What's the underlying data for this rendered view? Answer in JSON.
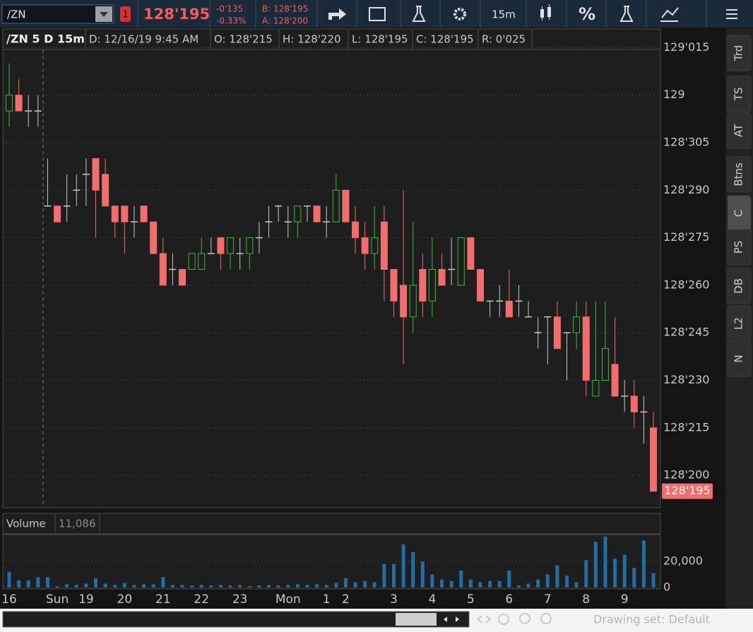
{
  "toolbar": {
    "symbol": "/ZN",
    "badge": "1",
    "last": "128'195",
    "change": "-0'135",
    "change_pct": "-0.33%",
    "bid": "B: 128'195",
    "ask": "A: 128'200",
    "interval": "15m",
    "percent": "%"
  },
  "sidebar_tabs": [
    "Trd",
    "TS",
    "AT",
    "Btns",
    "C",
    "PS",
    "DB",
    "L2",
    "N"
  ],
  "header": {
    "symbol_period": "/ZN 5 D 15m",
    "date": "D: 12/16/19 9:45 AM",
    "open": "O: 128'215",
    "high": "H: 128'220",
    "low": "L: 128'195",
    "close": "C: 128'195",
    "range": "R: 0'025"
  },
  "footer": {
    "drawing_set": "Drawing set: Default"
  },
  "chart_data": [
    {
      "type": "candlestick",
      "up_color": "#3cb93c",
      "down_color": "#f26d6d",
      "doji_color": "#c8c8c8",
      "grid": true,
      "categories": [
        "16",
        null,
        null,
        null,
        null,
        "Sun",
        null,
        null,
        "19",
        null,
        null,
        null,
        "20",
        null,
        null,
        null,
        "21",
        null,
        null,
        null,
        "22",
        null,
        null,
        null,
        "23",
        null,
        null,
        null,
        null,
        "Mon",
        null,
        null,
        null,
        "1",
        null,
        "2",
        null,
        null,
        null,
        null,
        "3",
        null,
        null,
        null,
        "4",
        null,
        null,
        null,
        "5",
        null,
        null,
        null,
        "6",
        null,
        null,
        null,
        "7",
        null,
        null,
        null,
        "8",
        null,
        null,
        null,
        "9",
        null,
        null,
        null
      ],
      "open": [
        128.984375,
        129,
        128.984375,
        128.984375,
        128.890625,
        128.890625,
        128.890625,
        128.90625,
        128.921875,
        128.9375,
        128.921875,
        128.890625,
        128.890625,
        128.875,
        128.890625,
        128.875,
        128.84375,
        128.828125,
        128.828125,
        128.828125,
        128.828125,
        128.84375,
        128.859375,
        128.84375,
        128.84375,
        128.84375,
        128.859375,
        128.875,
        128.890625,
        128.875,
        128.875,
        128.890625,
        128.890625,
        128.875,
        128.875,
        128.90625,
        128.875,
        128.859375,
        128.84375,
        128.875,
        128.828125,
        128.8125,
        128.78125,
        128.828125,
        128.796875,
        128.828125,
        128.828125,
        128.8125,
        128.859375,
        128.828125,
        128.796875,
        128.796875,
        128.796875,
        128.796875,
        128.78125,
        128.765625,
        128.78125,
        128.78125,
        128.765625,
        128.765625,
        128.78125,
        128.703125,
        128.71875,
        128.734375,
        128.703125,
        128.703125,
        128.6875,
        128.671875
      ],
      "high": [
        129.03125,
        129.015625,
        129,
        129,
        128.9375,
        128.890625,
        128.921875,
        128.921875,
        128.9375,
        128.9375,
        128.9375,
        128.890625,
        128.890625,
        128.890625,
        128.890625,
        128.875,
        128.859375,
        128.84375,
        128.828125,
        128.84375,
        128.859375,
        128.859375,
        128.859375,
        128.859375,
        128.859375,
        128.859375,
        128.875,
        128.890625,
        128.890625,
        128.890625,
        128.890625,
        128.890625,
        128.890625,
        128.890625,
        128.921875,
        128.90625,
        128.890625,
        128.875,
        128.890625,
        128.890625,
        128.828125,
        128.90625,
        128.875,
        128.84375,
        128.859375,
        128.84375,
        128.859375,
        128.859375,
        128.859375,
        128.828125,
        128.796875,
        128.8125,
        128.828125,
        128.8125,
        128.796875,
        128.78125,
        128.78125,
        128.796875,
        128.765625,
        128.796875,
        128.796875,
        128.796875,
        128.796875,
        128.78125,
        128.71875,
        128.71875,
        128.703125,
        128.6875
      ],
      "low": [
        128.96875,
        128.984375,
        128.96875,
        128.96875,
        128.890625,
        128.875,
        128.875,
        128.890625,
        128.890625,
        128.859375,
        128.890625,
        128.859375,
        128.84375,
        128.859375,
        128.875,
        128.84375,
        128.8125,
        128.8125,
        128.8125,
        128.828125,
        128.828125,
        128.84375,
        128.828125,
        128.828125,
        128.828125,
        128.828125,
        128.84375,
        128.859375,
        128.875,
        128.859375,
        128.859375,
        128.875,
        128.875,
        128.859375,
        128.875,
        128.875,
        128.84375,
        128.828125,
        128.828125,
        128.796875,
        128.78125,
        128.734375,
        128.765625,
        128.78125,
        128.78125,
        128.8125,
        128.8125,
        128.8125,
        128.828125,
        128.796875,
        128.78125,
        128.78125,
        128.78125,
        128.78125,
        128.78125,
        128.75,
        128.734375,
        128.75,
        128.71875,
        128.75,
        128.703125,
        128.703125,
        128.71875,
        128.703125,
        128.6875,
        128.671875,
        128.65625,
        128.609375
      ],
      "close": [
        129,
        128.984375,
        128.984375,
        128.984375,
        128.890625,
        128.875,
        128.890625,
        128.90625,
        128.921875,
        128.90625,
        128.890625,
        128.875,
        128.875,
        128.875,
        128.875,
        128.84375,
        128.8125,
        128.828125,
        128.8125,
        128.84375,
        128.84375,
        128.84375,
        128.84375,
        128.859375,
        128.84375,
        128.859375,
        128.859375,
        128.875,
        128.890625,
        128.875,
        128.890625,
        128.890625,
        128.875,
        128.875,
        128.90625,
        128.875,
        128.859375,
        128.84375,
        128.859375,
        128.828125,
        128.796875,
        128.78125,
        128.8125,
        128.796875,
        128.828125,
        128.8125,
        128.828125,
        128.859375,
        128.828125,
        128.796875,
        128.796875,
        128.796875,
        128.78125,
        128.796875,
        128.78125,
        128.765625,
        128.78125,
        128.75,
        128.765625,
        128.78125,
        128.71875,
        128.71875,
        128.75,
        128.703125,
        128.703125,
        128.6875,
        128.6875,
        128.609375
      ],
      "last_label": "128'195",
      "ylim": [
        128.59375,
        129.0625
      ],
      "yticks": [
        {
          "value": 128.625,
          "label": "128'200"
        },
        {
          "value": 128.671875,
          "label": "128'215"
        },
        {
          "value": 128.71875,
          "label": "128'230"
        },
        {
          "value": 128.765625,
          "label": "128'245"
        },
        {
          "value": 128.8125,
          "label": "128'260"
        },
        {
          "value": 128.859375,
          "label": "128'275"
        },
        {
          "value": 128.90625,
          "label": "128'290"
        },
        {
          "value": 128.953125,
          "label": "128'305"
        },
        129,
        {
          "value": 129.046875,
          "label": "129'015"
        }
      ]
    },
    {
      "type": "bar",
      "title": "Volume",
      "subtitle": "11,086",
      "color": "#1f6fa6",
      "values": [
        12000,
        5500,
        5500,
        8000,
        8000,
        1000,
        2500,
        2000,
        3000,
        7000,
        3000,
        2000,
        3500,
        2000,
        2500,
        2500,
        8000,
        2000,
        2000,
        1500,
        2000,
        1500,
        2000,
        1500,
        2000,
        1000,
        1500,
        2000,
        1500,
        2000,
        2500,
        2000,
        2500,
        2000,
        3500,
        7000,
        4000,
        5000,
        4000,
        18000,
        18000,
        33000,
        27000,
        20000,
        10000,
        6000,
        5000,
        13000,
        6000,
        4000,
        5000,
        5000,
        13000,
        1500,
        3000,
        6000,
        10000,
        17000,
        9000,
        4000,
        21000,
        35000,
        39000,
        22000,
        25000,
        15000,
        36000,
        11086
      ],
      "ylim": [
        0,
        40500
      ],
      "yticks": [
        0,
        {
          "value": 20000,
          "label": "20,000"
        }
      ]
    }
  ]
}
